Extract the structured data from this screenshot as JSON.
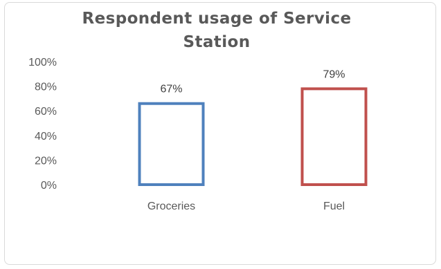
{
  "chart_data": {
    "type": "bar",
    "title": "Respondent usage of Service Station",
    "categories": [
      "Groceries",
      "Fuel"
    ],
    "values": [
      67,
      79
    ],
    "data_labels": [
      "67%",
      "79%"
    ],
    "colors": [
      "#4F81BD",
      "#C0504D"
    ],
    "bar_fill": "#ffffff",
    "ylim": [
      0,
      100
    ],
    "yticks": [
      0,
      20,
      40,
      60,
      80,
      100
    ],
    "ytick_labels": [
      "0%",
      "20%",
      "40%",
      "60%",
      "80%",
      "100%"
    ],
    "xlabel": "",
    "ylabel": "",
    "grid": false,
    "legend": "none"
  }
}
